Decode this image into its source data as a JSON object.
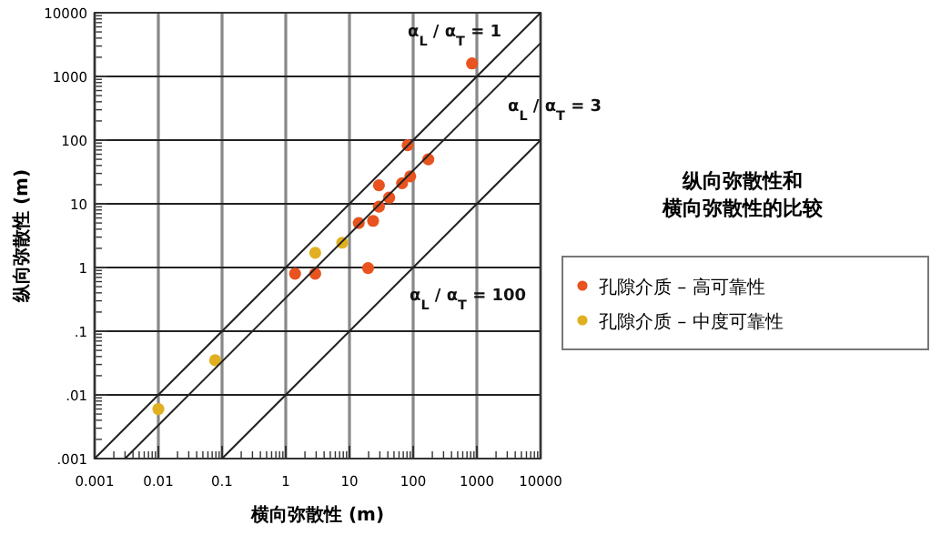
{
  "chart_data": {
    "type": "scatter",
    "title": "纵向弥散性和横向弥散性的比较",
    "xlabel": "横向弥散性 (m)",
    "ylabel": "纵向弥散性 (m)",
    "log": "xy",
    "grid": true,
    "legend": "right",
    "marker": "circle",
    "xlim": [
      0.001,
      10000
    ],
    "ylim": [
      0.001,
      10000
    ],
    "xticks": [
      0.001,
      0.01,
      0.1,
      1,
      10,
      100,
      1000,
      10000
    ],
    "yticks": [
      {
        "value": 0.001,
        "label": ".001"
      },
      {
        "value": 0.01,
        "label": ".01"
      },
      {
        "value": 0.1,
        "label": ".1"
      },
      1,
      10,
      100,
      1000,
      10000
    ],
    "series": [
      {
        "name": "孔隙介质 – 高可靠性",
        "color": "#e8531f",
        "x": [
          1.4,
          2.9,
          19.6,
          14,
          23.5,
          29,
          29,
          42,
          67,
          90,
          82,
          173,
          840
        ],
        "values": [
          0.8,
          0.8,
          0.98,
          5,
          5.4,
          9,
          19.6,
          12.5,
          21,
          27,
          83,
          50,
          1600
        ]
      },
      {
        "name": "孔隙介质 – 中度可靠性",
        "color": "#e0b020",
        "x": [
          0.01,
          0.078,
          2.9,
          7.7
        ],
        "values": [
          0.006,
          0.035,
          1.7,
          2.45
        ]
      },
      {
        "name": "α$_{L}$ / α$_{T}$ = 1",
        "type": "line",
        "marker": "none",
        "color": "#222222",
        "x": [
          0.001,
          10000
        ],
        "values": [
          0.001,
          10000
        ]
      },
      {
        "name": "α$_{L}$ / α$_{T}$ = 3",
        "type": "line",
        "marker": "none",
        "color": "#222222",
        "x": [
          0.003,
          10000
        ],
        "values": [
          0.001,
          3333
        ]
      },
      {
        "name": "α$_{L}$ / α$_{T}$ = 100",
        "type": "line",
        "marker": "none",
        "color": "#222222",
        "x": [
          0.1,
          10000
        ],
        "values": [
          0.001,
          100
        ]
      }
    ]
  }
}
